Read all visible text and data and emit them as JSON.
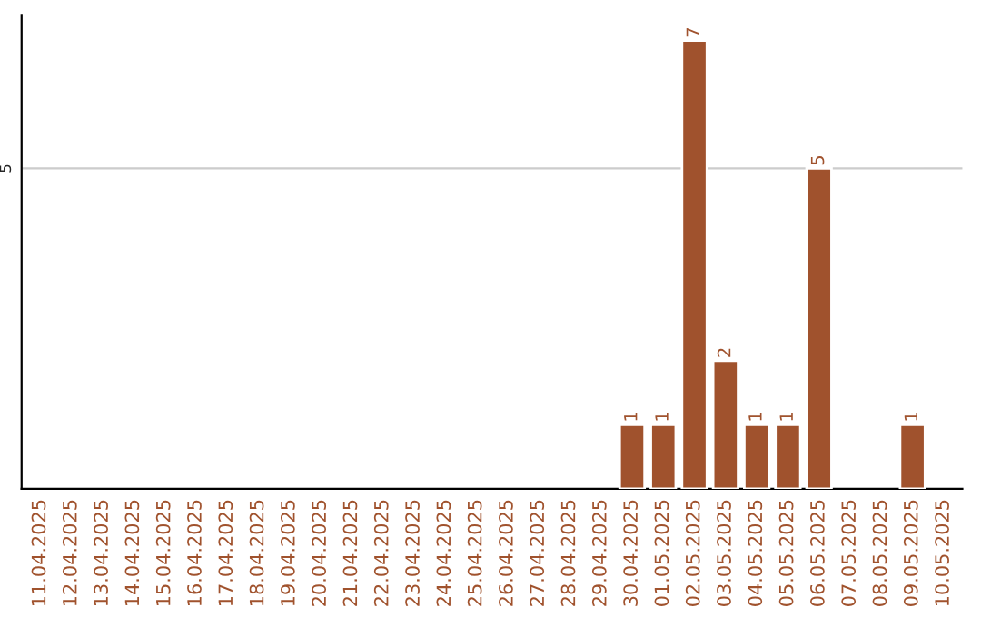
{
  "chart_data": {
    "type": "bar",
    "categories": [
      "11.04.2025",
      "12.04.2025",
      "13.04.2025",
      "14.04.2025",
      "15.04.2025",
      "16.04.2025",
      "17.04.2025",
      "18.04.2025",
      "19.04.2025",
      "20.04.2025",
      "21.04.2025",
      "22.04.2025",
      "23.04.2025",
      "24.04.2025",
      "25.04.2025",
      "26.04.2025",
      "27.04.2025",
      "28.04.2025",
      "29.04.2025",
      "30.04.2025",
      "01.05.2025",
      "02.05.2025",
      "03.05.2025",
      "04.05.2025",
      "05.05.2025",
      "06.05.2025",
      "07.05.2025",
      "08.05.2025",
      "09.05.2025",
      "10.05.2025"
    ],
    "values": [
      null,
      null,
      null,
      null,
      null,
      null,
      null,
      null,
      null,
      null,
      null,
      null,
      null,
      null,
      null,
      null,
      null,
      null,
      null,
      1,
      1,
      7,
      2,
      1,
      1,
      5,
      null,
      null,
      1,
      null
    ],
    "value_labels": [
      null,
      null,
      null,
      null,
      null,
      null,
      null,
      null,
      null,
      null,
      null,
      null,
      null,
      null,
      null,
      null,
      null,
      null,
      null,
      "1",
      "1",
      "7",
      "2",
      "1",
      "1",
      "5",
      null,
      null,
      "1",
      null
    ],
    "color": "#a0522d",
    "ylim": [
      0,
      7.4
    ],
    "ref_lines": [
      {
        "axis": "y",
        "value": 5,
        "label": "5",
        "color": "#cccccc"
      }
    ]
  }
}
